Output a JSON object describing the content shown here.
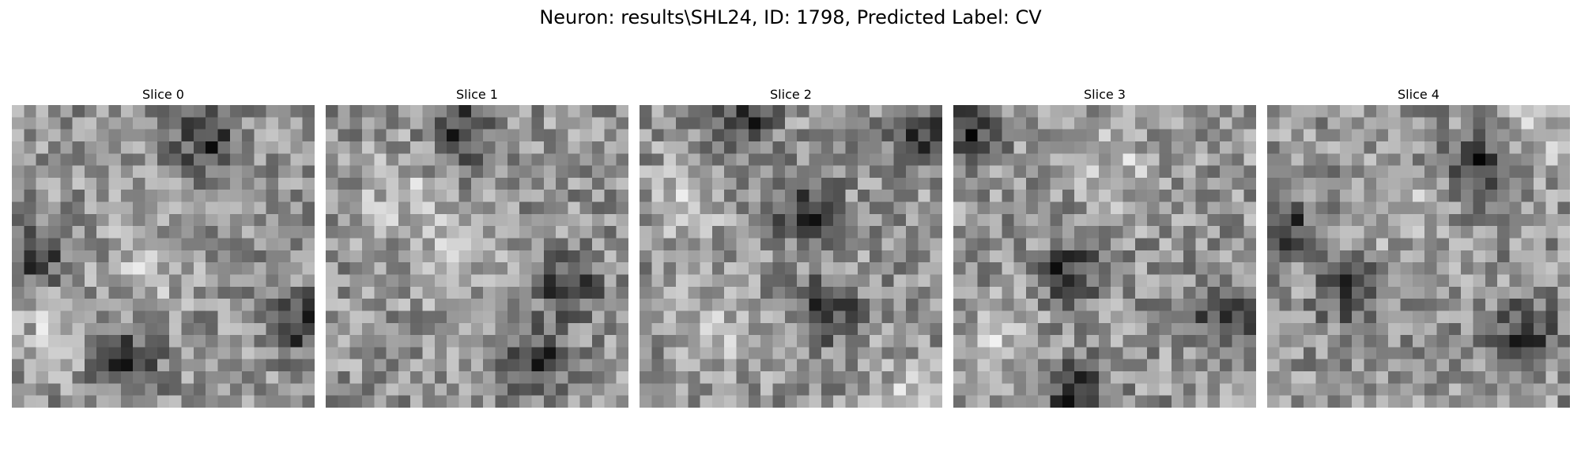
{
  "figure": {
    "suptitle": "Neuron: results\\SHL24, ID: 1798, Predicted Label: CV"
  },
  "chart_data": {
    "type": "heatmap",
    "colormap": "gray",
    "grid": false,
    "axes_visible": false,
    "panels": [
      {
        "title": "Slice 0",
        "rows": 25,
        "cols": 25,
        "dark_regions": [
          [
            0.65,
            0.12
          ],
          [
            0.08,
            0.5
          ],
          [
            0.38,
            0.85
          ],
          [
            0.95,
            0.72
          ]
        ],
        "bright_regions": [
          [
            0.45,
            0.55
          ],
          [
            0.15,
            0.75
          ]
        ]
      },
      {
        "title": "Slice 1",
        "rows": 25,
        "cols": 25,
        "dark_regions": [
          [
            0.8,
            0.6
          ],
          [
            0.45,
            0.08
          ],
          [
            0.7,
            0.85
          ]
        ],
        "bright_regions": [
          [
            0.25,
            0.3
          ],
          [
            0.4,
            0.5
          ]
        ]
      },
      {
        "title": "Slice 2",
        "rows": 25,
        "cols": 25,
        "dark_regions": [
          [
            0.35,
            0.05
          ],
          [
            0.55,
            0.35
          ],
          [
            0.62,
            0.68
          ],
          [
            0.95,
            0.1
          ]
        ],
        "bright_regions": [
          [
            0.15,
            0.35
          ],
          [
            0.25,
            0.75
          ],
          [
            0.9,
            0.95
          ]
        ]
      },
      {
        "title": "Slice 3",
        "rows": 25,
        "cols": 25,
        "dark_regions": [
          [
            0.38,
            0.55
          ],
          [
            0.05,
            0.08
          ],
          [
            0.4,
            0.95
          ],
          [
            0.9,
            0.7
          ]
        ],
        "bright_regions": [
          [
            0.15,
            0.8
          ],
          [
            0.55,
            0.2
          ]
        ]
      },
      {
        "title": "Slice 4",
        "rows": 25,
        "cols": 25,
        "dark_regions": [
          [
            0.28,
            0.62
          ],
          [
            0.05,
            0.4
          ],
          [
            0.7,
            0.2
          ],
          [
            0.85,
            0.75
          ]
        ],
        "bright_regions": [
          [
            0.45,
            0.35
          ],
          [
            0.9,
            0.1
          ]
        ]
      }
    ]
  }
}
